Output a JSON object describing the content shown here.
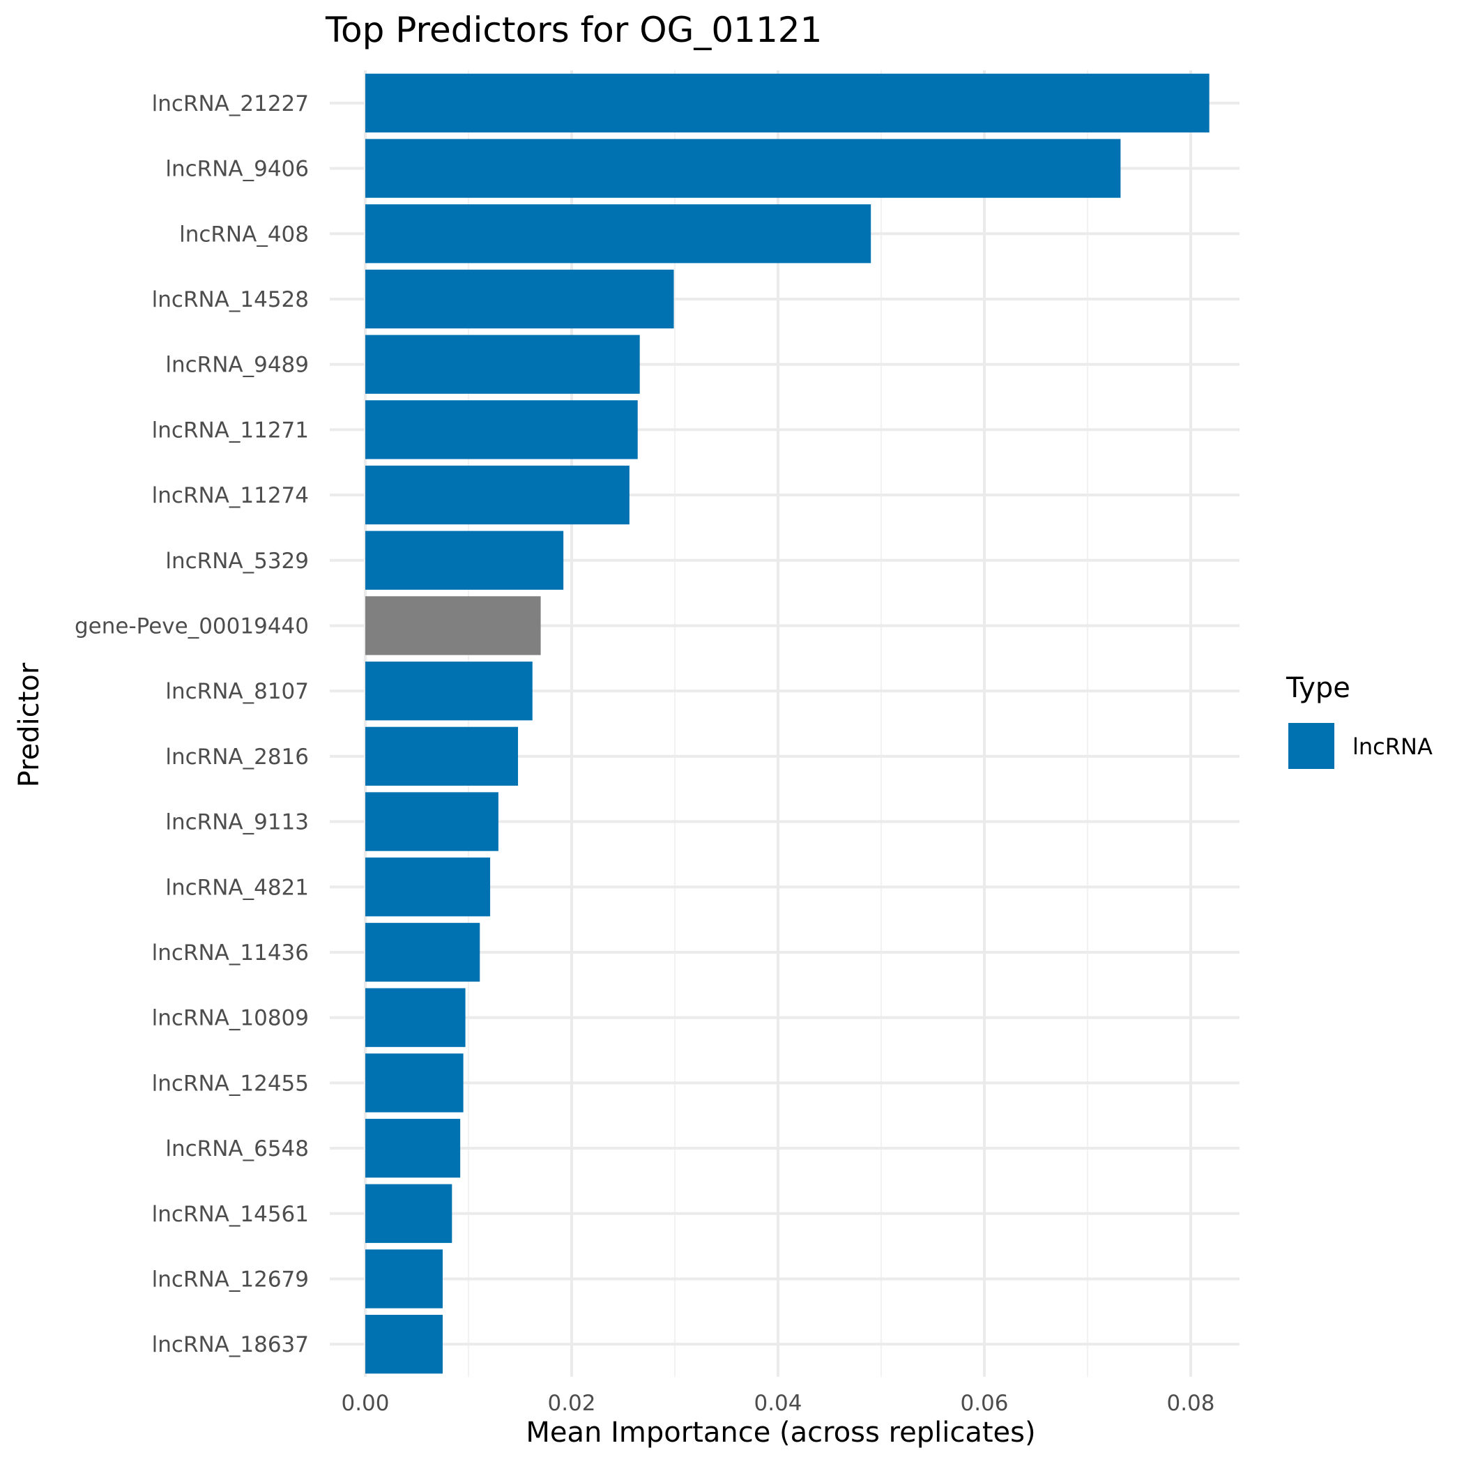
{
  "chart_data": {
    "type": "bar",
    "orientation": "horizontal",
    "title": "Top Predictors for OG_01121",
    "xlabel": "Mean Importance (across replicates)",
    "ylabel": "Predictor",
    "xlim": [
      0,
      0.0855
    ],
    "xticks": [
      0.0,
      0.02,
      0.04,
      0.06,
      0.08
    ],
    "xtick_labels": [
      "0.00",
      "0.02",
      "0.04",
      "0.06",
      "0.08"
    ],
    "grid": true,
    "legend": {
      "title": "Type",
      "position": "right",
      "entries": [
        {
          "label": "lncRNA",
          "color": "#0072B2"
        }
      ]
    },
    "colors": {
      "lncRNA": "#0072B2",
      "gene": "#808080"
    },
    "categories": [
      "lncRNA_21227",
      "lncRNA_9406",
      "lncRNA_408",
      "lncRNA_14528",
      "lncRNA_9489",
      "lncRNA_11271",
      "lncRNA_11274",
      "lncRNA_5329",
      "gene-Peve_00019440",
      "lncRNA_8107",
      "lncRNA_2816",
      "lncRNA_9113",
      "lncRNA_4821",
      "lncRNA_11436",
      "lncRNA_10809",
      "lncRNA_12455",
      "lncRNA_6548",
      "lncRNA_14561",
      "lncRNA_12679",
      "lncRNA_18637"
    ],
    "values": [
      0.0818,
      0.0732,
      0.049,
      0.0299,
      0.0266,
      0.0264,
      0.0256,
      0.0192,
      0.017,
      0.0162,
      0.0148,
      0.0129,
      0.0121,
      0.0111,
      0.0097,
      0.0095,
      0.0092,
      0.0084,
      0.0075,
      0.0075
    ],
    "types": [
      "lncRNA",
      "lncRNA",
      "lncRNA",
      "lncRNA",
      "lncRNA",
      "lncRNA",
      "lncRNA",
      "lncRNA",
      "gene",
      "lncRNA",
      "lncRNA",
      "lncRNA",
      "lncRNA",
      "lncRNA",
      "lncRNA",
      "lncRNA",
      "lncRNA",
      "lncRNA",
      "lncRNA",
      "lncRNA"
    ]
  }
}
